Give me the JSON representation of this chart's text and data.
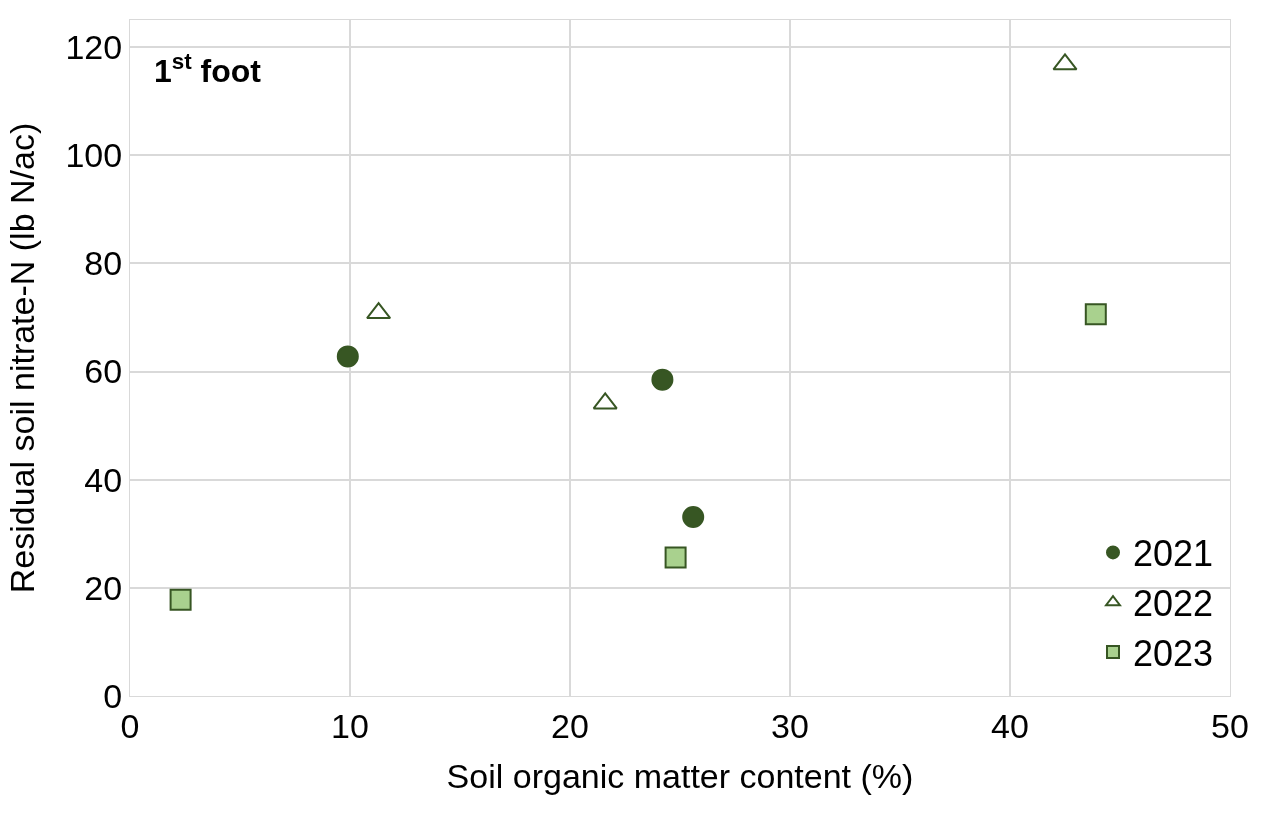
{
  "chart_data": {
    "type": "scatter",
    "xlabel": "Soil organic matter content (%)",
    "ylabel": "Residual soil nitrate-N (lb N/ac)",
    "annotations": [
      "1$^{st}$ foot"
    ],
    "series": [
      {
        "name": "2021",
        "color": "#375623",
        "marker": "circle",
        "x": [
          9.9,
          24.2,
          25.6
        ],
        "values": [
          62.8,
          58.5,
          33.1
        ]
      },
      {
        "name": "2022",
        "color": "#375623",
        "marker": "triangle",
        "x": [
          11.3,
          21.6,
          42.5
        ],
        "values": [
          70.8,
          54.1,
          116.8
        ]
      },
      {
        "name": "2023",
        "color": "#a9d18e",
        "marker": "square",
        "x": [
          2.3,
          24.8,
          43.9
        ],
        "values": [
          17.8,
          25.6,
          70.6
        ]
      }
    ],
    "xlim": [
      0,
      50
    ],
    "xticks": [
      0,
      10,
      20,
      30,
      40,
      50
    ],
    "ylim": [
      0,
      125
    ],
    "yticks": [
      0,
      20,
      40,
      60,
      80,
      100,
      120
    ],
    "grid": true,
    "legend": "bottom right"
  }
}
